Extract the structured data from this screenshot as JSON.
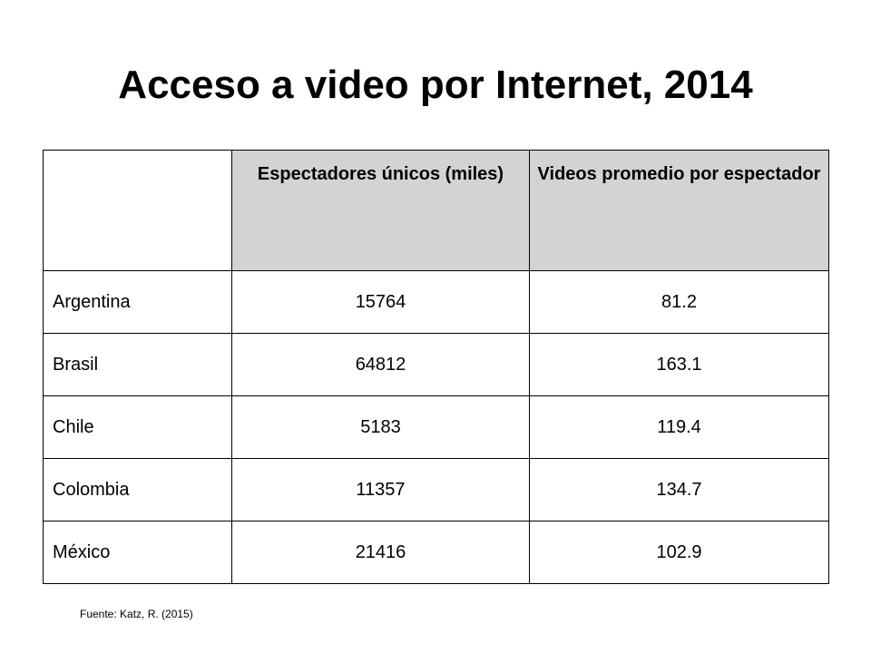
{
  "slide": {
    "title": "Acceso a video por Internet, 2014"
  },
  "table": {
    "headers": [
      "",
      "Espectadores únicos (miles)",
      "Videos promedio por espectador"
    ],
    "rows": [
      {
        "country": "Argentina",
        "viewers": "15764",
        "avg_videos": "81.2"
      },
      {
        "country": "Brasil",
        "viewers": "64812",
        "avg_videos": "163.1"
      },
      {
        "country": "Chile",
        "viewers": "5183",
        "avg_videos": "119.4"
      },
      {
        "country": "Colombia",
        "viewers": "11357",
        "avg_videos": "134.7"
      },
      {
        "country": "México",
        "viewers": "21416",
        "avg_videos": "102.9"
      }
    ]
  },
  "source": "Fuente: Katz, R. (2015)",
  "colors": {
    "header_background": "#d3d3d3",
    "border": "#000000",
    "text": "#000000"
  }
}
